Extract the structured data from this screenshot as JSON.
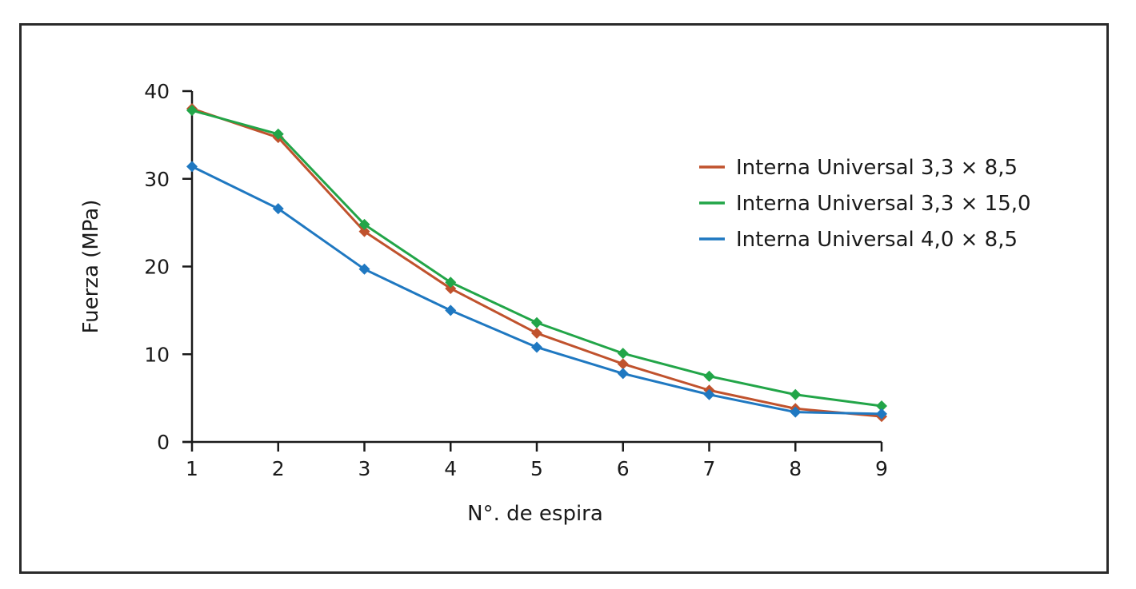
{
  "chart_data": {
    "type": "line",
    "title": "",
    "xlabel": "N°. de espira",
    "ylabel": "Fuerza (MPa)",
    "x": [
      1,
      2,
      3,
      4,
      5,
      6,
      7,
      8,
      9
    ],
    "xticks": [
      "1",
      "2",
      "3",
      "4",
      "5",
      "6",
      "7",
      "8",
      "9"
    ],
    "yticks": [
      "0",
      "10",
      "20",
      "30",
      "40"
    ],
    "ylim": [
      0,
      40
    ],
    "xlim": [
      1,
      9
    ],
    "grid": false,
    "legend_position": "right",
    "marker": "diamond",
    "series": [
      {
        "name": "Interna Universal 3,3 × 8,5",
        "color": "#c0522d",
        "values": [
          38.0,
          34.7,
          24.0,
          17.5,
          12.4,
          8.9,
          5.9,
          3.8,
          2.9
        ]
      },
      {
        "name": "Interna Universal 3,3 × 15,0",
        "color": "#22a548",
        "values": [
          37.8,
          35.1,
          24.8,
          18.2,
          13.6,
          10.1,
          7.5,
          5.4,
          4.1
        ]
      },
      {
        "name": "Interna Universal 4,0 × 8,5",
        "color": "#1f78c1",
        "values": [
          31.4,
          26.6,
          19.7,
          15.0,
          10.8,
          7.8,
          5.4,
          3.4,
          3.2
        ]
      }
    ]
  }
}
